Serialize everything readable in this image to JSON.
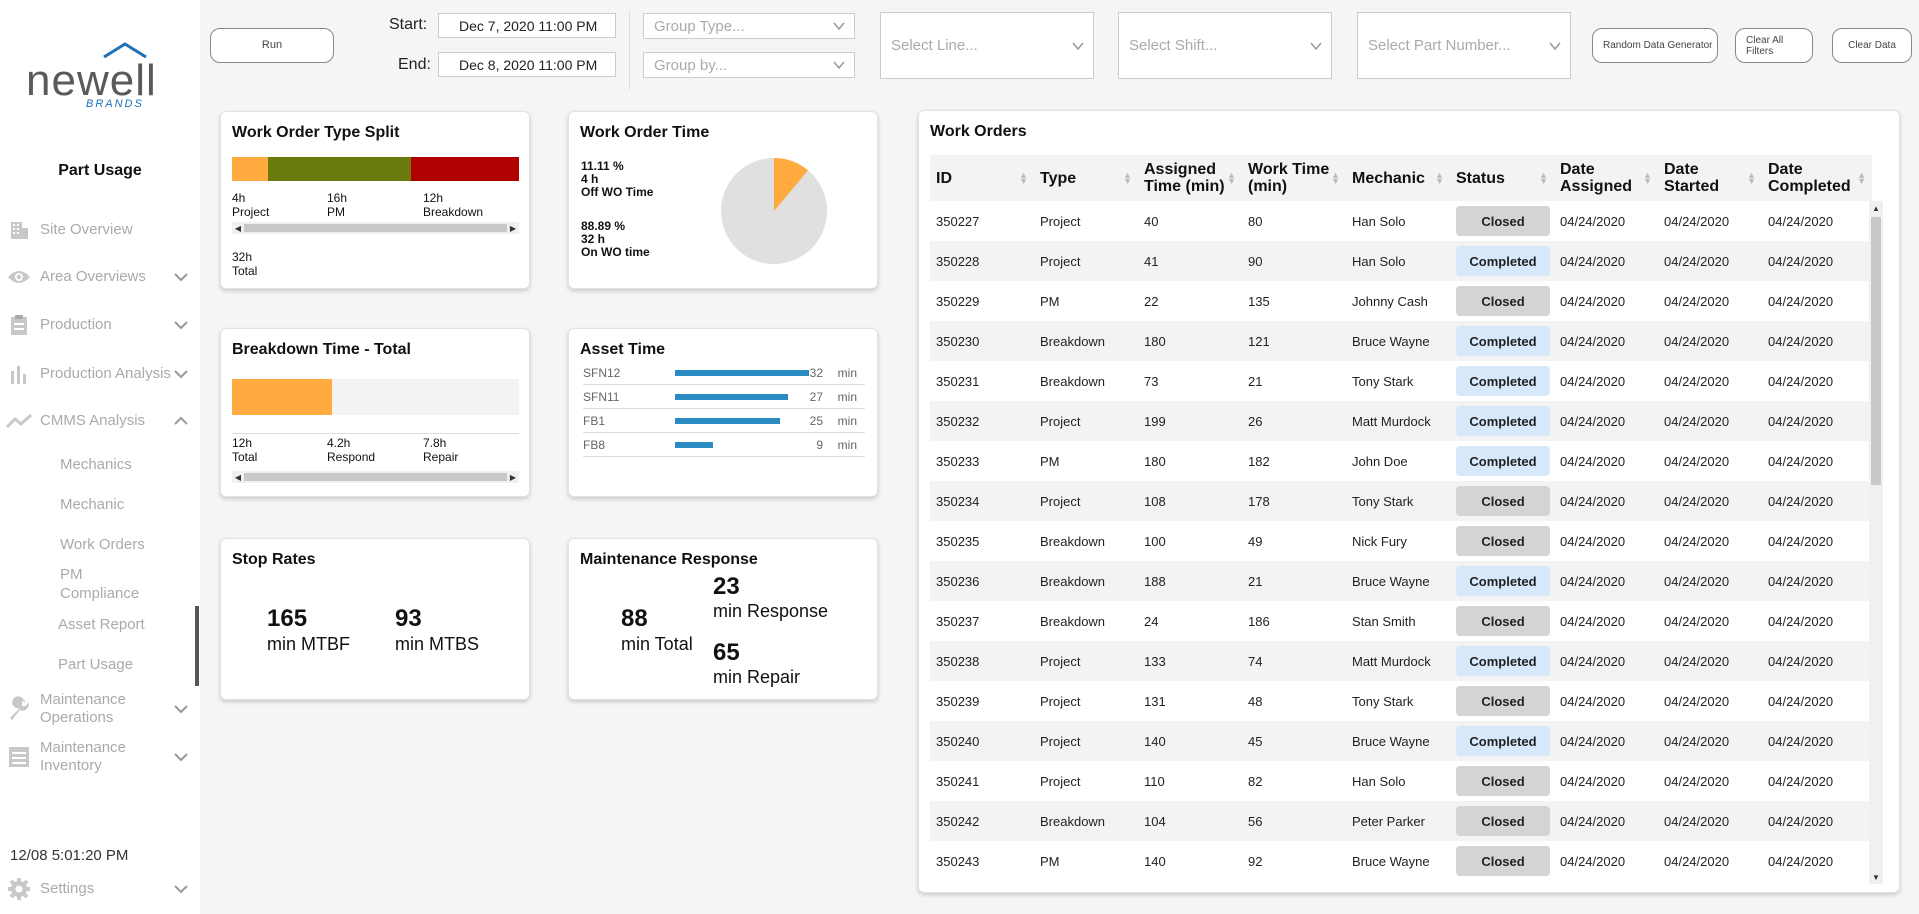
{
  "brand": {
    "name": "newell",
    "sub": "BRANDS",
    "roof_color": "#1d6fb8"
  },
  "sidebar": {
    "heading": "Part Usage",
    "items": [
      {
        "label": "Site Overview",
        "icon": "building-icon",
        "expandable": false
      },
      {
        "label": "Area Overviews",
        "icon": "eye-icon",
        "expandable": true
      },
      {
        "label": "Production",
        "icon": "clipboard-icon",
        "expandable": true
      },
      {
        "label": "Production Analysis",
        "icon": "bar-chart-icon",
        "expandable": true
      },
      {
        "label": "CMMS Analysis",
        "icon": "line-chart-icon",
        "expandable": true,
        "expanded": true
      },
      {
        "label": "Maintenance Operations",
        "icon": "wrench-icon",
        "expandable": true
      },
      {
        "label": "Maintenance Inventory",
        "icon": "inventory-icon",
        "expandable": true
      }
    ],
    "sub_items": [
      "Mechanics",
      "Mechanic",
      "Work Orders",
      "PM Compliance",
      "Asset Report",
      "Part Usage"
    ],
    "clock": "12/08 5:01:20 PM",
    "settings_label": "Settings"
  },
  "toolbar": {
    "run_label": "Run",
    "start_label": "Start:",
    "end_label": "End:",
    "start_value": "Dec 7, 2020 11:00 PM",
    "end_value": "Dec 8, 2020 11:00 PM",
    "group_type_placeholder": "Group Type...",
    "group_by_placeholder": "Group by...",
    "line_placeholder": "Select Line...",
    "shift_placeholder": "Select Shift...",
    "part_placeholder": "Select Part Number...",
    "random_label": "Random Data Generator",
    "clear_filters_label": "Clear All Filters",
    "clear_data_label": "Clear Data"
  },
  "wo_type_split": {
    "title": "Work Order Type Split",
    "segments": [
      {
        "hours": "4h",
        "label": "Project",
        "value": 4,
        "color": "#ffab40"
      },
      {
        "hours": "16h",
        "label": "PM",
        "value": 16,
        "color": "#6b7a0d"
      },
      {
        "hours": "12h",
        "label": "Breakdown",
        "value": 12,
        "color": "#b00000"
      }
    ],
    "total_hours": "32h",
    "total_label": "Total"
  },
  "wo_time": {
    "title": "Work Order Time",
    "off_pct": "11.11 %",
    "off_hours": "4 h",
    "off_label": "Off WO Time",
    "on_pct": "88.89 %",
    "on_hours": "32 h",
    "on_label": "On WO time",
    "off_fraction": 0.1111,
    "off_color": "#ffab40",
    "on_color": "#e0e0e0"
  },
  "breakdown": {
    "title": "Breakdown Time - Total",
    "fill_fraction": 0.35,
    "fill_color": "#ffab40",
    "stats": [
      {
        "value": "12h",
        "label": "Total"
      },
      {
        "value": "4.2h",
        "label": "Respond"
      },
      {
        "value": "7.8h",
        "label": "Repair"
      }
    ]
  },
  "asset_time": {
    "title": "Asset Time",
    "unit": "min",
    "max": 32,
    "rows": [
      {
        "name": "SFN12",
        "value": 32
      },
      {
        "name": "SFN11",
        "value": 27
      },
      {
        "name": "FB1",
        "value": 25
      },
      {
        "name": "FB8",
        "value": 9
      }
    ]
  },
  "stop_rates": {
    "title": "Stop Rates",
    "mtbf_value": "165",
    "mtbf_label": "min MTBF",
    "mtbs_value": "93",
    "mtbs_label": "min MTBS"
  },
  "maint_response": {
    "title": "Maintenance Response",
    "total_value": "88",
    "total_label": "min Total",
    "response_value": "23",
    "response_label": "min Response",
    "repair_value": "65",
    "repair_label": "min Repair"
  },
  "work_orders": {
    "title": "Work Orders",
    "columns": [
      "ID",
      "Type",
      "Assigned Time (min)",
      "Work Time (min)",
      "Mechanic",
      "Status",
      "Date Assigned",
      "Date Started",
      "Date Completed"
    ],
    "rows": [
      [
        "350227",
        "Project",
        "40",
        "80",
        "Han Solo",
        "Closed",
        "04/24/2020",
        "04/24/2020",
        "04/24/2020"
      ],
      [
        "350228",
        "Project",
        "41",
        "90",
        "Han Solo",
        "Completed",
        "04/24/2020",
        "04/24/2020",
        "04/24/2020"
      ],
      [
        "350229",
        "PM",
        "22",
        "135",
        "Johnny Cash",
        "Closed",
        "04/24/2020",
        "04/24/2020",
        "04/24/2020"
      ],
      [
        "350230",
        "Breakdown",
        "180",
        "121",
        "Bruce Wayne",
        "Completed",
        "04/24/2020",
        "04/24/2020",
        "04/24/2020"
      ],
      [
        "350231",
        "Breakdown",
        "73",
        "21",
        "Tony Stark",
        "Completed",
        "04/24/2020",
        "04/24/2020",
        "04/24/2020"
      ],
      [
        "350232",
        "Project",
        "199",
        "26",
        "Matt Murdock",
        "Completed",
        "04/24/2020",
        "04/24/2020",
        "04/24/2020"
      ],
      [
        "350233",
        "PM",
        "180",
        "182",
        "John Doe",
        "Completed",
        "04/24/2020",
        "04/24/2020",
        "04/24/2020"
      ],
      [
        "350234",
        "Project",
        "108",
        "178",
        "Tony Stark",
        "Closed",
        "04/24/2020",
        "04/24/2020",
        "04/24/2020"
      ],
      [
        "350235",
        "Breakdown",
        "100",
        "49",
        "Nick Fury",
        "Closed",
        "04/24/2020",
        "04/24/2020",
        "04/24/2020"
      ],
      [
        "350236",
        "Breakdown",
        "188",
        "21",
        "Bruce Wayne",
        "Completed",
        "04/24/2020",
        "04/24/2020",
        "04/24/2020"
      ],
      [
        "350237",
        "Breakdown",
        "24",
        "186",
        "Stan Smith",
        "Closed",
        "04/24/2020",
        "04/24/2020",
        "04/24/2020"
      ],
      [
        "350238",
        "Project",
        "133",
        "74",
        "Matt Murdock",
        "Completed",
        "04/24/2020",
        "04/24/2020",
        "04/24/2020"
      ],
      [
        "350239",
        "Project",
        "131",
        "48",
        "Tony Stark",
        "Closed",
        "04/24/2020",
        "04/24/2020",
        "04/24/2020"
      ],
      [
        "350240",
        "Project",
        "140",
        "45",
        "Bruce Wayne",
        "Completed",
        "04/24/2020",
        "04/24/2020",
        "04/24/2020"
      ],
      [
        "350241",
        "Project",
        "110",
        "82",
        "Han Solo",
        "Closed",
        "04/24/2020",
        "04/24/2020",
        "04/24/2020"
      ],
      [
        "350242",
        "Breakdown",
        "104",
        "56",
        "Peter Parker",
        "Closed",
        "04/24/2020",
        "04/24/2020",
        "04/24/2020"
      ],
      [
        "350243",
        "PM",
        "140",
        "92",
        "Bruce Wayne",
        "Closed",
        "04/24/2020",
        "04/24/2020",
        "04/24/2020"
      ]
    ]
  }
}
